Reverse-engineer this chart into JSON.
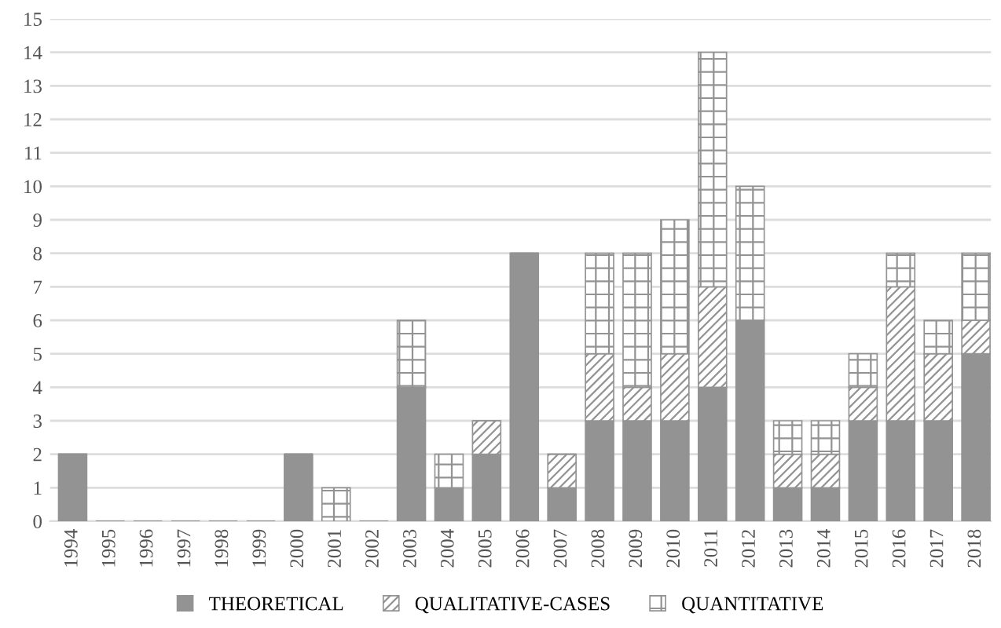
{
  "chart_data": {
    "type": "bar",
    "stacked": true,
    "categories": [
      "1994",
      "1995",
      "1996",
      "1997",
      "1998",
      "1999",
      "2000",
      "2001",
      "2002",
      "2003",
      "2004",
      "2005",
      "2006",
      "2007",
      "2008",
      "2009",
      "2010",
      "2011",
      "2012",
      "2013",
      "2014",
      "2015",
      "2016",
      "2017",
      "2018"
    ],
    "series": [
      {
        "name": "THEORETICAL",
        "color": "#939393",
        "values": [
          2,
          0,
          0,
          0,
          0,
          0,
          2,
          0,
          0,
          4,
          1,
          2,
          8,
          1,
          3,
          3,
          3,
          4,
          6,
          1,
          1,
          3,
          3,
          3,
          5
        ]
      },
      {
        "name": "QUALITATIVE-CASES",
        "color": "#939393",
        "values": [
          0,
          0,
          0,
          0,
          0,
          0,
          0,
          0,
          0,
          0,
          0,
          1,
          0,
          1,
          2,
          1,
          2,
          3,
          0,
          1,
          1,
          1,
          4,
          2,
          1
        ]
      },
      {
        "name": "QUANTITATIVE",
        "color": "#939393",
        "values": [
          0,
          0,
          0,
          0,
          0,
          0,
          0,
          1,
          0,
          2,
          1,
          0,
          0,
          0,
          3,
          4,
          4,
          7,
          4,
          1,
          1,
          1,
          1,
          1,
          2
        ]
      }
    ],
    "ylim": [
      0,
      15
    ],
    "yticks": [
      0,
      1,
      2,
      3,
      4,
      5,
      6,
      7,
      8,
      9,
      10,
      11,
      12,
      13,
      14,
      15
    ],
    "grid": "y",
    "legend": "bottom"
  }
}
